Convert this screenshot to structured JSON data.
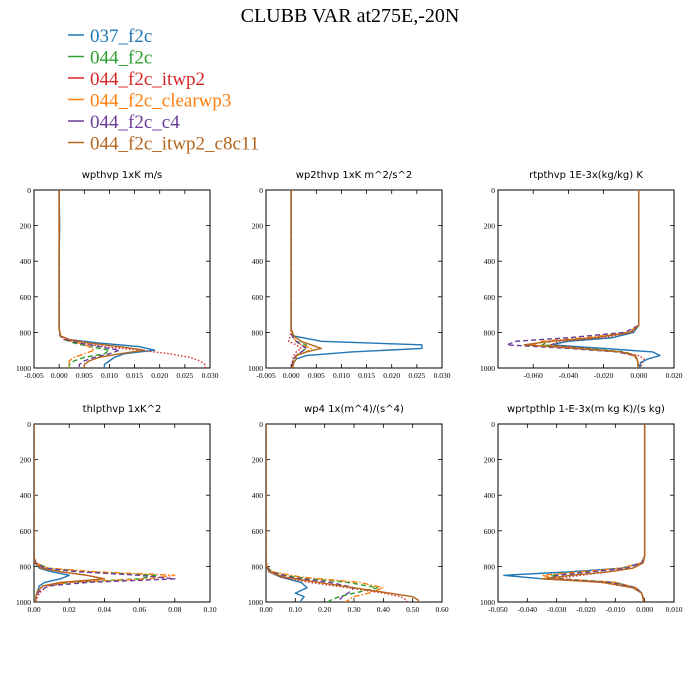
{
  "figure_title": "CLUBB VAR at275E,-20N",
  "series": [
    {
      "name": "037_f2c",
      "color": "#1f77b4",
      "dash": "solid"
    },
    {
      "name": "044_f2c",
      "color": "#2ca02c",
      "dash": "dashed"
    },
    {
      "name": "044_f2c_itwp2",
      "color": "#d62728",
      "dash": "dotted"
    },
    {
      "name": "044_f2c_clearwp3",
      "color": "#ff7f0e",
      "dash": "dashdot"
    },
    {
      "name": "044_f2c_c4",
      "color": "#6a3d9a",
      "dash": "dashed"
    },
    {
      "name": "044_f2c_itwp2_c8c11",
      "color": "#b5651d",
      "dash": "solid"
    }
  ],
  "chart_data": [
    {
      "type": "line",
      "title": "wpthvp  1xK m/s",
      "xlim": [
        -0.005,
        0.03
      ],
      "ylim": [
        1000,
        0
      ],
      "xticks": [
        "-0.005",
        "0.000",
        "0.005",
        "0.010",
        "0.015",
        "0.020",
        "0.025",
        "0.030"
      ],
      "yticks": [
        "0",
        "200",
        "400",
        "600",
        "800",
        "1000"
      ],
      "y": [
        0,
        200,
        400,
        600,
        780,
        820,
        840,
        860,
        880,
        900,
        920,
        940,
        960,
        980,
        1000
      ],
      "series_values": [
        [
          0,
          0.0001,
          0,
          0,
          0,
          0.0003,
          0.002,
          0.008,
          0.016,
          0.019,
          0.013,
          0.011,
          0.01,
          0.009,
          0.009
        ],
        [
          0,
          0,
          0,
          0,
          0,
          0.0002,
          0.001,
          0.003,
          0.006,
          0.01,
          0.009,
          0.005,
          0.003,
          0.002,
          0.002
        ],
        [
          0,
          0,
          0,
          0,
          0,
          0.0002,
          0.001,
          0.004,
          0.009,
          0.016,
          0.022,
          0.026,
          0.028,
          0.029,
          0.029
        ],
        [
          0,
          0,
          0,
          0,
          0,
          0.0003,
          0.002,
          0.004,
          0.006,
          0.007,
          0.005,
          0.003,
          0.002,
          0.002,
          0.002
        ],
        [
          0,
          0,
          0,
          0,
          0,
          0.0002,
          0.0015,
          0.004,
          0.008,
          0.012,
          0.01,
          0.007,
          0.005,
          0.004,
          0.004
        ],
        [
          0,
          0,
          0,
          0,
          0,
          0.0003,
          0.002,
          0.006,
          0.012,
          0.017,
          0.012,
          0.008,
          0.006,
          0.005,
          0.005
        ]
      ]
    },
    {
      "type": "line",
      "title": "wp2thvp  1xK m^2/s^2",
      "xlim": [
        -0.005,
        0.03
      ],
      "ylim": [
        1000,
        0
      ],
      "xticks": [
        "-0.005",
        "0.000",
        "0.005",
        "0.010",
        "0.015",
        "0.020",
        "0.025",
        "0.030"
      ],
      "yticks": [
        "0",
        "200",
        "400",
        "600",
        "800",
        "1000"
      ],
      "y": [
        0,
        200,
        400,
        600,
        780,
        820,
        850,
        870,
        890,
        910,
        930,
        950,
        970,
        1000
      ],
      "series_values": [
        [
          0,
          0,
          0,
          0,
          0,
          0.0005,
          0.006,
          0.026,
          0.026,
          0.012,
          0.003,
          0.001,
          0.0005,
          0.0003
        ],
        [
          0,
          0,
          0,
          0,
          0,
          0.0002,
          0.001,
          0.003,
          0.003,
          0.002,
          0.001,
          0.0005,
          0.0003,
          0.0002
        ],
        [
          0,
          0,
          0,
          0,
          0,
          -0.0002,
          -0.0005,
          0.001,
          0.002,
          0.001,
          0.0005,
          0.0003,
          0.0002,
          0.0001
        ],
        [
          0,
          0,
          0,
          0,
          0,
          0.0003,
          0.001,
          0.002,
          0.004,
          0.003,
          0.001,
          0.0005,
          0.0003,
          0.0002
        ],
        [
          0,
          0,
          0,
          0,
          0,
          0.0002,
          0.001,
          0.002,
          0.003,
          0.002,
          0.001,
          0.0005,
          0.0003,
          0.0002
        ],
        [
          0,
          0,
          0,
          0,
          0,
          0.0005,
          0.002,
          0.004,
          0.006,
          0.003,
          0.001,
          0.001,
          0.0005,
          0.0003
        ]
      ]
    },
    {
      "type": "line",
      "title": "rtpthvp  1E-3x(kg/kg) K",
      "xlim": [
        -0.08,
        0.02
      ],
      "ylim": [
        1000,
        0
      ],
      "xticks": [
        "-0.060",
        "-0.040",
        "-0.020",
        "0.000",
        "0.020"
      ],
      "yticks": [
        "0",
        "200",
        "400",
        "600",
        "800",
        "1000"
      ],
      "y": [
        0,
        200,
        400,
        600,
        760,
        800,
        830,
        850,
        870,
        890,
        910,
        930,
        950,
        970,
        1000
      ],
      "series_values": [
        [
          0,
          0,
          0,
          0,
          0,
          -0.003,
          -0.015,
          -0.04,
          -0.05,
          -0.02,
          0.008,
          0.012,
          0.005,
          0.001,
          0.0005
        ],
        [
          0,
          0,
          0,
          0,
          0,
          -0.005,
          -0.025,
          -0.05,
          -0.055,
          -0.03,
          -0.008,
          -0.002,
          -0.001,
          -0.0005,
          -0.0003
        ],
        [
          0,
          0,
          0,
          0,
          0,
          -0.004,
          -0.02,
          -0.045,
          -0.05,
          -0.03,
          -0.01,
          0.0,
          0.003,
          0.002,
          0.001
        ],
        [
          0,
          0,
          0,
          0,
          0,
          -0.006,
          -0.03,
          -0.055,
          -0.06,
          -0.035,
          -0.01,
          -0.003,
          -0.001,
          -0.0005,
          -0.0003
        ],
        [
          0,
          0,
          0,
          0,
          0,
          -0.008,
          -0.04,
          -0.07,
          -0.075,
          -0.04,
          -0.012,
          -0.003,
          -0.001,
          -0.0005,
          -0.0003
        ],
        [
          0,
          0,
          0,
          0,
          0,
          -0.005,
          -0.025,
          -0.05,
          -0.065,
          -0.035,
          -0.01,
          -0.002,
          -0.001,
          -0.0005,
          -0.0003
        ]
      ]
    },
    {
      "type": "line",
      "title": "thlpthvp  1xK^2",
      "xlim": [
        0,
        0.1
      ],
      "ylim": [
        1000,
        0
      ],
      "xticks": [
        "0.00",
        "0.02",
        "0.04",
        "0.06",
        "0.08",
        "0.10"
      ],
      "yticks": [
        "0",
        "200",
        "400",
        "600",
        "800",
        "1000"
      ],
      "y": [
        0,
        200,
        400,
        600,
        740,
        780,
        810,
        830,
        850,
        870,
        890,
        910,
        940,
        970,
        1000
      ],
      "series_values": [
        [
          0,
          0,
          0,
          0,
          0,
          0.0005,
          0.003,
          0.01,
          0.02,
          0.015,
          0.006,
          0.003,
          0.002,
          0.001,
          0.001
        ],
        [
          0,
          0,
          0,
          0,
          0,
          0.001,
          0.008,
          0.03,
          0.07,
          0.06,
          0.02,
          0.005,
          0.002,
          0.001,
          0.001
        ],
        [
          0,
          0,
          0,
          0,
          0,
          0.0005,
          0.005,
          0.015,
          0.03,
          0.04,
          0.02,
          0.008,
          0.004,
          0.002,
          0.001
        ],
        [
          0,
          0,
          0,
          0,
          0,
          0.001,
          0.008,
          0.035,
          0.08,
          0.065,
          0.02,
          0.005,
          0.002,
          0.001,
          0.001
        ],
        [
          0,
          0,
          0,
          0,
          0,
          0.001,
          0.006,
          0.025,
          0.06,
          0.08,
          0.03,
          0.008,
          0.003,
          0.001,
          0.001
        ],
        [
          0,
          0,
          0,
          0,
          0,
          0.0005,
          0.004,
          0.015,
          0.03,
          0.04,
          0.015,
          0.005,
          0.002,
          0.001,
          0.001
        ]
      ]
    },
    {
      "type": "line",
      "title": "wp4  1x(m^4)/(s^4)",
      "xlim": [
        0,
        0.6
      ],
      "ylim": [
        1000,
        0
      ],
      "xticks": [
        "0.00",
        "0.10",
        "0.20",
        "0.30",
        "0.40",
        "0.50",
        "0.60"
      ],
      "yticks": [
        "0",
        "200",
        "400",
        "600",
        "800",
        "1000"
      ],
      "y": [
        0,
        200,
        400,
        600,
        760,
        800,
        830,
        860,
        890,
        920,
        950,
        970,
        990,
        1000
      ],
      "series_values": [
        [
          0,
          0,
          0,
          0,
          0,
          0.002,
          0.01,
          0.05,
          0.12,
          0.14,
          0.1,
          0.13,
          0.12,
          0.12
        ],
        [
          0,
          0,
          0,
          0,
          0,
          0.003,
          0.02,
          0.1,
          0.28,
          0.38,
          0.3,
          0.25,
          0.22,
          0.21
        ],
        [
          0,
          0,
          0,
          0,
          0,
          0.002,
          0.01,
          0.05,
          0.15,
          0.28,
          0.4,
          0.46,
          0.48,
          0.48
        ],
        [
          0,
          0,
          0,
          0,
          0,
          0.003,
          0.02,
          0.12,
          0.32,
          0.4,
          0.35,
          0.3,
          0.28,
          0.27
        ],
        [
          0,
          0,
          0,
          0,
          0,
          0.002,
          0.015,
          0.08,
          0.22,
          0.3,
          0.28,
          0.26,
          0.25,
          0.25
        ],
        [
          0,
          0,
          0,
          0,
          0,
          0.002,
          0.012,
          0.06,
          0.18,
          0.3,
          0.42,
          0.5,
          0.52,
          0.52
        ]
      ]
    },
    {
      "type": "line",
      "title": "wprtpthlp  1-E-3x(m kg K)/(s kg)",
      "xlim": [
        -0.05,
        0.01
      ],
      "ylim": [
        1000,
        0
      ],
      "xticks": [
        "-0.050",
        "-0.040",
        "-0.030",
        "-0.020",
        "-0.010",
        "0.000",
        "0.010"
      ],
      "yticks": [
        "0",
        "200",
        "400",
        "600",
        "800",
        "1000"
      ],
      "y": [
        0,
        200,
        400,
        600,
        740,
        780,
        810,
        830,
        850,
        870,
        890,
        920,
        950,
        980,
        1000
      ],
      "series_values": [
        [
          0,
          0,
          0,
          0,
          0,
          -0.001,
          -0.008,
          -0.025,
          -0.048,
          -0.035,
          -0.01,
          -0.003,
          -0.001,
          -0.0005,
          -0.0003
        ],
        [
          0,
          0,
          0,
          0,
          0,
          -0.001,
          -0.007,
          -0.02,
          -0.032,
          -0.028,
          -0.01,
          -0.003,
          -0.001,
          -0.0005,
          -0.0003
        ],
        [
          0,
          0,
          0,
          0,
          0,
          -0.0005,
          -0.004,
          -0.012,
          -0.022,
          -0.03,
          -0.015,
          -0.004,
          -0.001,
          -0.0005,
          -0.0003
        ],
        [
          0,
          0,
          0,
          0,
          0,
          -0.001,
          -0.008,
          -0.022,
          -0.035,
          -0.03,
          -0.01,
          -0.003,
          -0.001,
          -0.0005,
          -0.0003
        ],
        [
          0,
          0,
          0,
          0,
          0,
          -0.001,
          -0.006,
          -0.018,
          -0.03,
          -0.032,
          -0.012,
          -0.003,
          -0.001,
          -0.0005,
          -0.0003
        ],
        [
          0,
          0,
          0,
          0,
          0,
          -0.0005,
          -0.004,
          -0.012,
          -0.025,
          -0.035,
          -0.014,
          -0.004,
          -0.001,
          -0.0005,
          -0.0003
        ]
      ]
    }
  ]
}
